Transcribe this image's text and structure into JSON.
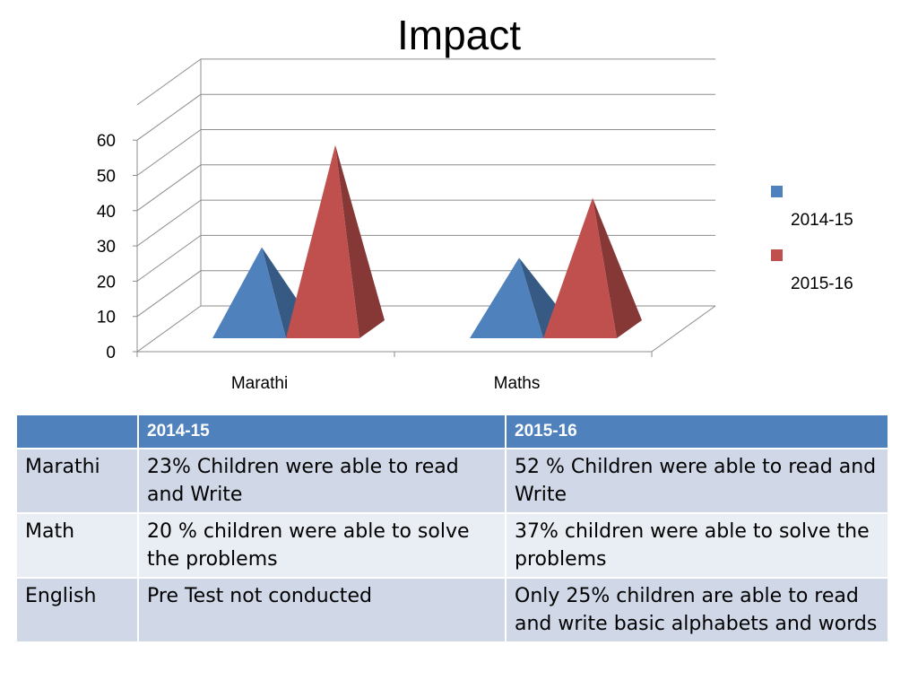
{
  "title": "Impact",
  "colors": {
    "series_2014": "#4f81bd",
    "series_2015": "#c0504d",
    "table_header": "#4f81bd",
    "table_row_dark": "#d0d8e8",
    "table_row_light": "#e9edf4"
  },
  "chart_data": {
    "type": "bar",
    "bar_shape": "3d-pyramid",
    "categories": [
      "Marathi",
      "Maths"
    ],
    "series": [
      {
        "name": "2014-15",
        "values": [
          23,
          20
        ]
      },
      {
        "name": "2015-16",
        "values": [
          52,
          37
        ]
      }
    ],
    "yticks": [
      "0",
      "10",
      "20",
      "30",
      "40",
      "50",
      "60"
    ],
    "ylim": [
      0,
      60
    ],
    "grid": true,
    "legend": "right"
  },
  "table": {
    "headers": [
      "",
      "2014-15",
      "2015-16"
    ],
    "rows": [
      {
        "subject": "Marathi",
        "y2014": "23% Children were able to read and Write",
        "y2015": " 52 % Children were able to read and Write"
      },
      {
        "subject": "Math",
        "y2014": "20 % children were able to solve the problems",
        "y2015": "37% children were able to solve the problems"
      },
      {
        "subject": "English",
        "y2014": "Pre Test not conducted",
        "y2015": "Only 25% children are able to read and write basic alphabets and words"
      }
    ]
  }
}
